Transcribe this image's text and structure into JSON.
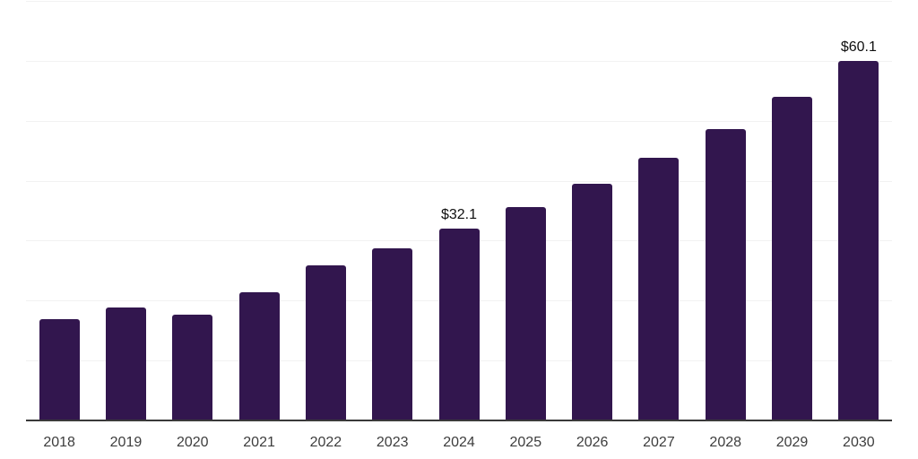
{
  "chart_data": {
    "type": "bar",
    "title": "",
    "xlabel": "",
    "ylabel": "",
    "categories": [
      "2018",
      "2019",
      "2020",
      "2021",
      "2022",
      "2023",
      "2024",
      "2025",
      "2026",
      "2027",
      "2028",
      "2029",
      "2030"
    ],
    "values": [
      17.0,
      19.0,
      17.8,
      21.5,
      26.0,
      28.9,
      32.1,
      35.7,
      39.6,
      44.0,
      48.7,
      54.2,
      60.1
    ],
    "data_labels": [
      {
        "category": "2024",
        "text": "$32.1"
      },
      {
        "category": "2030",
        "text": "$60.1"
      }
    ],
    "ylim": [
      0,
      70.3
    ],
    "gridline_values": [
      10,
      20,
      30,
      40,
      50,
      60,
      70
    ],
    "grid": "horizontal",
    "legend_position": "none",
    "y_tick_labels_visible": false,
    "colors": {
      "bar_fill": "#32164e",
      "axis_line": "#3a3a3a",
      "gridline": "#f2f2f2",
      "tick_label": "#3d3d3d",
      "data_label": "#0f0f0f",
      "background": "#ffffff"
    }
  }
}
